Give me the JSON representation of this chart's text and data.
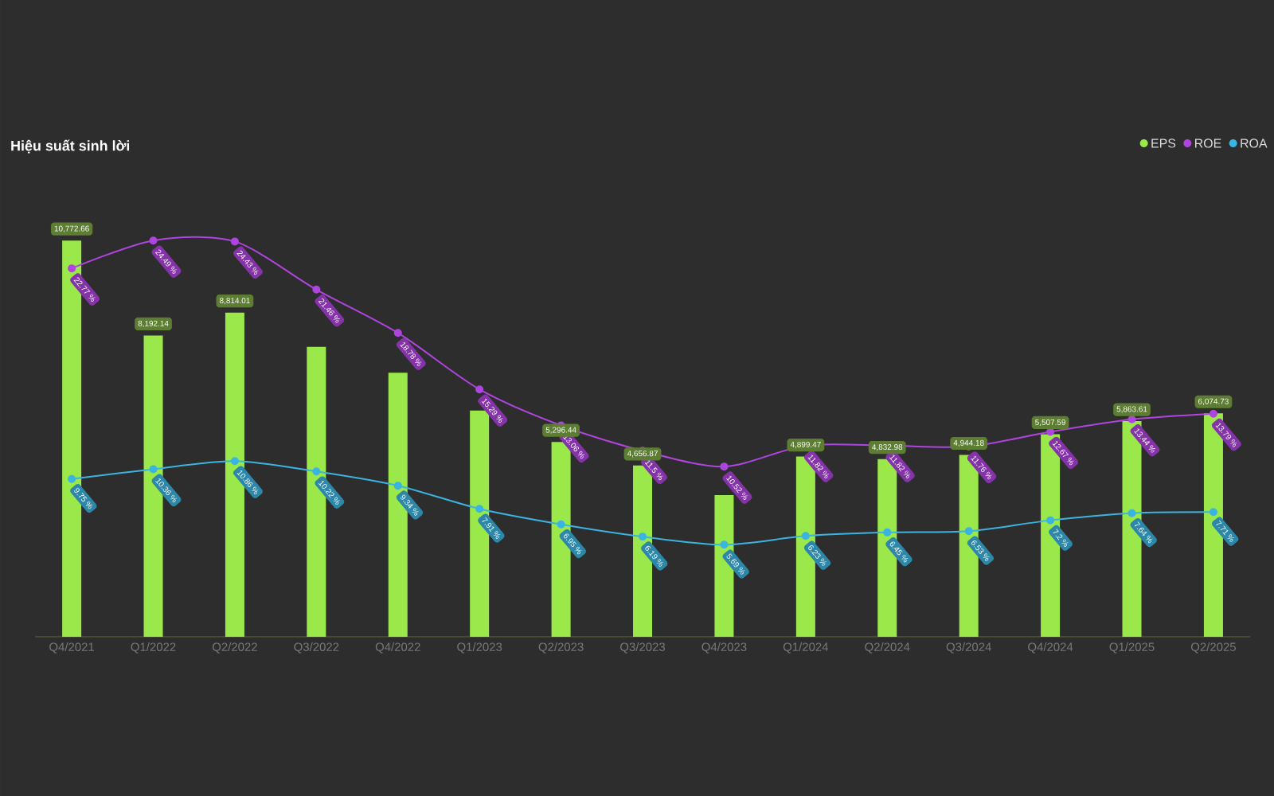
{
  "chart_data": {
    "type": "bar",
    "title": "Hiệu suất sinh lời",
    "legend": "top right",
    "marker": "circle",
    "categories": [
      "Q4/2021",
      "Q1/2022",
      "Q2/2022",
      "Q3/2022",
      "Q4/2022",
      "Q1/2023",
      "Q2/2023",
      "Q3/2023",
      "Q4/2023",
      "Q1/2024",
      "Q2/2024",
      "Q3/2024",
      "Q4/2024",
      "Q1/2025",
      "Q2/2025"
    ],
    "series": [
      {
        "name": "EPS",
        "color": "#9be84a",
        "values": [
          10772.66,
          8192.14,
          8814.01,
          7880,
          7180,
          6150,
          5296.44,
          4656.87,
          3850,
          4899.47,
          4832.98,
          4944.18,
          5507.59,
          5863.61,
          6074.73
        ],
        "value_labels": [
          "10,772.66",
          "8,192.14",
          "8,814.01",
          null,
          null,
          null,
          "5,296.44",
          "4,656.87",
          null,
          "4,899.47",
          "4,832.98",
          "4,944.18",
          "5,507.59",
          "5,863.61",
          "6,074.73"
        ]
      },
      {
        "name": "ROE",
        "type": "line",
        "axis": "y2",
        "color": "#b044e0",
        "values": [
          22.77,
          24.49,
          24.43,
          21.46,
          18.78,
          15.29,
          13.06,
          11.5,
          10.52,
          11.82,
          11.82,
          11.76,
          12.67,
          13.44,
          13.79
        ],
        "value_labels": [
          "22.77 %",
          "24.49 %",
          "24.43 %",
          "21.46 %",
          "18.78 %",
          "15.29 %",
          "13.06 %",
          "11.5 %",
          "10.52 %",
          "11.82 %",
          "11.82 %",
          "11.76 %",
          "12.67 %",
          "13.44 %",
          "13.79 %"
        ]
      },
      {
        "name": "ROA",
        "type": "line",
        "axis": "y2",
        "color": "#3ab4e0",
        "values": [
          9.75,
          10.36,
          10.86,
          10.22,
          9.34,
          7.91,
          6.95,
          6.19,
          5.69,
          6.23,
          6.45,
          6.53,
          7.2,
          7.64,
          7.71
        ],
        "value_labels": [
          "9.75 %",
          "10.36 %",
          "10.86 %",
          "10.22 %",
          "9.34 %",
          "7.91 %",
          "6.95 %",
          "6.19 %",
          "5.69 %",
          "6.23 %",
          "6.45 %",
          "6.53 %",
          "7.2 %",
          "7.64 %",
          "7.71 %"
        ]
      }
    ]
  }
}
